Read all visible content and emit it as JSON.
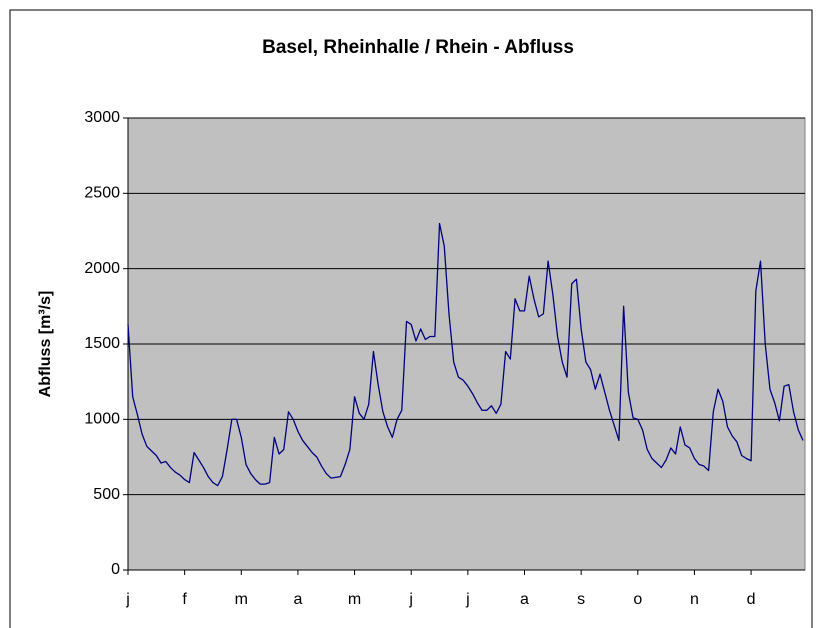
{
  "chart_data": {
    "type": "line",
    "title": "Basel, Rheinhalle / Rhein - Abfluss",
    "y_label": "Abfluss [m³/s]",
    "color": "#000080",
    "grid": true,
    "ylim": [
      0,
      3000
    ],
    "yticks": [
      0,
      500,
      1000,
      1500,
      2000,
      2500,
      3000
    ],
    "categories": [
      "j",
      null,
      null,
      null,
      null,
      null,
      null,
      null,
      null,
      null,
      null,
      null,
      "f",
      null,
      null,
      null,
      null,
      null,
      null,
      null,
      null,
      null,
      null,
      null,
      "m",
      null,
      null,
      null,
      null,
      null,
      null,
      null,
      null,
      null,
      null,
      null,
      "a",
      null,
      null,
      null,
      null,
      null,
      null,
      null,
      null,
      null,
      null,
      null,
      "m",
      null,
      null,
      null,
      null,
      null,
      null,
      null,
      null,
      null,
      null,
      null,
      "j",
      null,
      null,
      null,
      null,
      null,
      null,
      null,
      null,
      null,
      null,
      null,
      "j",
      null,
      null,
      null,
      null,
      null,
      null,
      null,
      null,
      null,
      null,
      null,
      "a",
      null,
      null,
      null,
      null,
      null,
      null,
      null,
      null,
      null,
      null,
      null,
      "s",
      null,
      null,
      null,
      null,
      null,
      null,
      null,
      null,
      null,
      null,
      null,
      "o",
      null,
      null,
      null,
      null,
      null,
      null,
      null,
      null,
      null,
      null,
      null,
      "n",
      null,
      null,
      null,
      null,
      null,
      null,
      null,
      null,
      null,
      null,
      null,
      "d",
      null,
      null,
      null,
      null,
      null,
      null,
      null,
      null,
      null,
      null,
      null
    ],
    "values": [
      1630,
      1150,
      1030,
      900,
      820,
      790,
      760,
      710,
      720,
      680,
      650,
      630,
      600,
      580,
      780,
      730,
      680,
      620,
      580,
      560,
      620,
      800,
      1000,
      1000,
      880,
      700,
      640,
      600,
      570,
      570,
      580,
      880,
      770,
      800,
      1050,
      1000,
      920,
      860,
      820,
      780,
      750,
      690,
      640,
      610,
      615,
      620,
      700,
      800,
      1150,
      1040,
      1000,
      1100,
      1450,
      1230,
      1050,
      950,
      880,
      1000,
      1060,
      1650,
      1630,
      1520,
      1600,
      1530,
      1550,
      1550,
      2300,
      2150,
      1700,
      1380,
      1280,
      1260,
      1220,
      1170,
      1110,
      1060,
      1060,
      1090,
      1040,
      1100,
      1450,
      1400,
      1800,
      1720,
      1720,
      1950,
      1800,
      1680,
      1700,
      2050,
      1830,
      1550,
      1380,
      1280,
      1900,
      1930,
      1600,
      1380,
      1330,
      1200,
      1300,
      1180,
      1060,
      960,
      860,
      1750,
      1180,
      1010,
      1000,
      930,
      800,
      740,
      710,
      680,
      730,
      810,
      770,
      950,
      830,
      810,
      740,
      700,
      690,
      660,
      1050,
      1200,
      1120,
      950,
      890,
      850,
      760,
      740,
      725,
      1850,
      2050,
      1500,
      1200,
      1110,
      990,
      1220,
      1230,
      1050,
      930,
      860
    ]
  }
}
